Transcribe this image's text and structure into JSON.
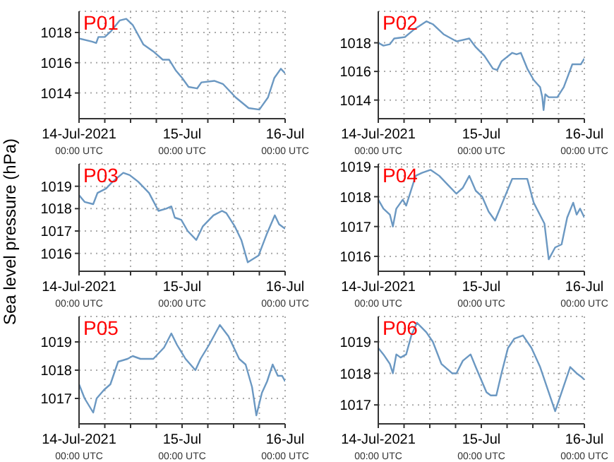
{
  "chart_data": [
    {
      "type": "line",
      "title": "P01",
      "x": [
        "2021-07-14T00:00",
        "2021-07-14T03:00",
        "2021-07-14T04:00",
        "2021-07-14T04:30",
        "2021-07-14T06:00",
        "2021-07-14T07:30",
        "2021-07-14T09:30",
        "2021-07-14T11:00",
        "2021-07-14T12:30",
        "2021-07-14T15:00",
        "2021-07-14T17:30",
        "2021-07-14T19:30",
        "2021-07-14T21:00",
        "2021-07-14T22:30",
        "2021-07-15T00:00",
        "2021-07-15T01:30",
        "2021-07-15T03:30",
        "2021-07-15T04:30",
        "2021-07-15T07:30",
        "2021-07-15T09:30",
        "2021-07-15T12:30",
        "2021-07-15T15:30",
        "2021-07-15T18:00",
        "2021-07-15T20:00",
        "2021-07-15T21:30",
        "2021-07-15T23:00",
        "2021-07-16T00:00"
      ],
      "series": [
        {
          "color": "#6b98c2",
          "values": [
            1017.6,
            1017.4,
            1017.3,
            1017.7,
            1017.7,
            1018.1,
            1018.8,
            1018.9,
            1018.5,
            1017.2,
            1016.7,
            1016.2,
            1016.2,
            1015.5,
            1015.0,
            1014.4,
            1014.3,
            1014.7,
            1014.8,
            1014.6,
            1013.7,
            1013.0,
            1012.9,
            1013.7,
            1015.0,
            1015.6,
            1015.3
          ]
        }
      ],
      "xlim": [
        "2021-07-14T00:00",
        "2021-07-16T00:00"
      ],
      "xticks": [
        {
          "value": "2021-07-14T00:00",
          "label": "14-Jul-2021\n00:00 UTC"
        },
        {
          "value": "2021-07-14T06:00",
          "label": null
        },
        {
          "value": "2021-07-14T12:00",
          "label": null
        },
        {
          "value": "2021-07-14T18:00",
          "label": null
        },
        {
          "value": "2021-07-15T00:00",
          "label": "15-Jul\n00:00 UTC"
        },
        {
          "value": "2021-07-15T06:00",
          "label": null
        },
        {
          "value": "2021-07-15T12:00",
          "label": null
        },
        {
          "value": "2021-07-15T18:00",
          "label": null
        },
        {
          "value": "2021-07-16T00:00",
          "label": "16-Jul\n00:00 UTC"
        }
      ],
      "ylim": [
        1012.3,
        1019.4
      ],
      "yticks": [
        1014,
        1016,
        1018
      ],
      "grid": true
    },
    {
      "type": "line",
      "title": "P02",
      "x": [
        "2021-07-14T00:00",
        "2021-07-14T01:12",
        "2021-07-14T02:42",
        "2021-07-14T03:42",
        "2021-07-14T06:12",
        "2021-07-14T08:12",
        "2021-07-14T11:12",
        "2021-07-14T12:42",
        "2021-07-14T15:12",
        "2021-07-14T18:12",
        "2021-07-14T21:12",
        "2021-07-14T22:42",
        "2021-07-15T00:42",
        "2021-07-15T02:42",
        "2021-07-15T03:42",
        "2021-07-15T04:42",
        "2021-07-15T07:12",
        "2021-07-15T08:12",
        "2021-07-15T09:12",
        "2021-07-15T10:42",
        "2021-07-15T12:12",
        "2021-07-15T13:42",
        "2021-07-15T14:12",
        "2021-07-15T14:30",
        "2021-07-15T14:54",
        "2021-07-15T15:42",
        "2021-07-15T17:42",
        "2021-07-15T19:12",
        "2021-07-15T21:12",
        "2021-07-15T23:12",
        "2021-07-16T00:00"
      ],
      "series": [
        {
          "color": "#6b98c2",
          "values": [
            1018.0,
            1017.8,
            1017.9,
            1018.3,
            1018.4,
            1018.9,
            1019.5,
            1019.3,
            1018.6,
            1018.1,
            1018.3,
            1017.7,
            1017.1,
            1016.2,
            1016.1,
            1016.7,
            1017.3,
            1017.2,
            1017.3,
            1016.2,
            1015.4,
            1014.9,
            1014.2,
            1013.3,
            1014.4,
            1014.2,
            1014.2,
            1014.9,
            1016.5,
            1016.5,
            1016.9
          ]
        }
      ],
      "xlim": [
        "2021-07-14T00:00",
        "2021-07-16T00:00"
      ],
      "xticks": [
        {
          "value": "2021-07-14T00:00",
          "label": "14-Jul-2021\n00:00 UTC"
        },
        {
          "value": "2021-07-14T06:00",
          "label": null
        },
        {
          "value": "2021-07-14T12:00",
          "label": null
        },
        {
          "value": "2021-07-14T18:00",
          "label": null
        },
        {
          "value": "2021-07-15T00:00",
          "label": "15-Jul\n00:00 UTC"
        },
        {
          "value": "2021-07-15T06:00",
          "label": null
        },
        {
          "value": "2021-07-15T12:00",
          "label": null
        },
        {
          "value": "2021-07-15T18:00",
          "label": null
        },
        {
          "value": "2021-07-16T00:00",
          "label": "16-Jul\n00:00 UTC"
        }
      ],
      "ylim": [
        1012.7,
        1020.2
      ],
      "yticks": [
        1014,
        1016,
        1018
      ],
      "grid": true
    },
    {
      "type": "line",
      "title": "P03",
      "ylabel": "Sea level pressure (hPa)",
      "x": [
        "2021-07-14T00:00",
        "2021-07-14T01:18",
        "2021-07-14T03:18",
        "2021-07-14T04:18",
        "2021-07-14T06:18",
        "2021-07-14T07:48",
        "2021-07-14T10:18",
        "2021-07-14T11:48",
        "2021-07-14T13:48",
        "2021-07-14T16:18",
        "2021-07-14T18:30",
        "2021-07-14T20:18",
        "2021-07-14T21:30",
        "2021-07-14T22:18",
        "2021-07-14T23:48",
        "2021-07-15T01:18",
        "2021-07-15T03:18",
        "2021-07-15T04:48",
        "2021-07-15T07:18",
        "2021-07-15T09:18",
        "2021-07-15T10:18",
        "2021-07-15T12:18",
        "2021-07-15T13:48",
        "2021-07-15T15:18",
        "2021-07-15T17:48",
        "2021-07-15T19:48",
        "2021-07-15T21:36",
        "2021-07-15T22:36",
        "2021-07-16T00:00"
      ],
      "series": [
        {
          "color": "#6b98c2",
          "values": [
            1018.6,
            1018.3,
            1018.2,
            1018.7,
            1018.9,
            1019.2,
            1019.6,
            1019.5,
            1019.2,
            1018.7,
            1017.9,
            1018.0,
            1018.1,
            1017.6,
            1017.5,
            1017.0,
            1016.6,
            1017.2,
            1017.7,
            1017.9,
            1017.8,
            1017.2,
            1016.6,
            1015.6,
            1015.9,
            1016.9,
            1017.7,
            1017.3,
            1017.1
          ]
        }
      ],
      "xlim": [
        "2021-07-14T00:00",
        "2021-07-16T00:00"
      ],
      "xticks": [
        {
          "value": "2021-07-14T00:00",
          "label": "14-Jul-2021\n00:00 UTC"
        },
        {
          "value": "2021-07-14T06:00",
          "label": null
        },
        {
          "value": "2021-07-14T12:00",
          "label": null
        },
        {
          "value": "2021-07-14T18:00",
          "label": null
        },
        {
          "value": "2021-07-15T00:00",
          "label": "15-Jul\n00:00 UTC"
        },
        {
          "value": "2021-07-15T06:00",
          "label": null
        },
        {
          "value": "2021-07-15T12:00",
          "label": null
        },
        {
          "value": "2021-07-15T18:00",
          "label": null
        },
        {
          "value": "2021-07-16T00:00",
          "label": "16-Jul\n00:00 UTC"
        }
      ],
      "ylim": [
        1015.2,
        1020
      ],
      "yticks": [
        1016,
        1017,
        1018,
        1019
      ],
      "grid": true
    },
    {
      "type": "line",
      "title": "P04",
      "x": [
        "2021-07-14T00:00",
        "2021-07-14T01:12",
        "2021-07-14T02:42",
        "2021-07-14T03:24",
        "2021-07-14T04:12",
        "2021-07-14T05:42",
        "2021-07-14T06:30",
        "2021-07-14T08:42",
        "2021-07-14T10:12",
        "2021-07-14T12:12",
        "2021-07-14T14:12",
        "2021-07-14T16:12",
        "2021-07-14T18:12",
        "2021-07-14T19:42",
        "2021-07-14T21:12",
        "2021-07-14T22:42",
        "2021-07-15T00:12",
        "2021-07-15T01:42",
        "2021-07-15T03:12",
        "2021-07-15T05:12",
        "2021-07-15T07:12",
        "2021-07-15T10:42",
        "2021-07-15T12:12",
        "2021-07-15T14:42",
        "2021-07-15T15:42",
        "2021-07-15T17:12",
        "2021-07-15T18:42",
        "2021-07-15T20:00",
        "2021-07-15T21:24",
        "2021-07-15T22:12",
        "2021-07-15T23:00",
        "2021-07-16T00:00"
      ],
      "series": [
        {
          "color": "#6b98c2",
          "values": [
            1017.9,
            1017.6,
            1017.4,
            1017.0,
            1017.6,
            1017.9,
            1017.7,
            1018.7,
            1018.8,
            1018.9,
            1018.7,
            1018.4,
            1018.1,
            1018.3,
            1018.7,
            1018.2,
            1018.0,
            1017.5,
            1017.2,
            1017.9,
            1018.6,
            1018.6,
            1017.8,
            1017.1,
            1015.9,
            1016.3,
            1016.4,
            1017.3,
            1017.8,
            1017.4,
            1017.6,
            1017.3
          ]
        }
      ],
      "xlim": [
        "2021-07-14T00:00",
        "2021-07-16T00:00"
      ],
      "xticks": [
        {
          "value": "2021-07-14T00:00",
          "label": "14-Jul-2021\n00:00 UTC"
        },
        {
          "value": "2021-07-14T06:00",
          "label": null
        },
        {
          "value": "2021-07-14T12:00",
          "label": null
        },
        {
          "value": "2021-07-14T18:00",
          "label": null
        },
        {
          "value": "2021-07-15T00:00",
          "label": "15-Jul\n00:00 UTC"
        },
        {
          "value": "2021-07-15T06:00",
          "label": null
        },
        {
          "value": "2021-07-15T12:00",
          "label": null
        },
        {
          "value": "2021-07-15T18:00",
          "label": null
        },
        {
          "value": "2021-07-16T00:00",
          "label": "16-Jul\n00:00 UTC"
        }
      ],
      "ylim": [
        1015.5,
        1019.1
      ],
      "yticks": [
        1016,
        1017,
        1018,
        1019
      ],
      "grid": true
    },
    {
      "type": "line",
      "title": "P05",
      "x": [
        "2021-07-14T00:00",
        "2021-07-14T01:18",
        "2021-07-14T03:18",
        "2021-07-14T04:06",
        "2021-07-14T05:48",
        "2021-07-14T07:18",
        "2021-07-14T09:06",
        "2021-07-14T11:18",
        "2021-07-14T12:30",
        "2021-07-14T14:18",
        "2021-07-14T17:18",
        "2021-07-14T19:48",
        "2021-07-14T21:30",
        "2021-07-14T22:48",
        "2021-07-15T00:48",
        "2021-07-15T03:06",
        "2021-07-15T04:18",
        "2021-07-15T06:18",
        "2021-07-15T08:48",
        "2021-07-15T10:48",
        "2021-07-15T13:18",
        "2021-07-15T14:48",
        "2021-07-15T16:18",
        "2021-07-15T17:18",
        "2021-07-15T18:36",
        "2021-07-15T19:48",
        "2021-07-15T21:06",
        "2021-07-15T22:18",
        "2021-07-15T23:18",
        "2021-07-16T00:00"
      ],
      "series": [
        {
          "color": "#6b98c2",
          "values": [
            1017.5,
            1017.0,
            1016.5,
            1017.0,
            1017.3,
            1017.5,
            1018.3,
            1018.4,
            1018.5,
            1018.4,
            1018.4,
            1018.8,
            1019.3,
            1018.9,
            1018.4,
            1018.0,
            1018.4,
            1018.9,
            1019.6,
            1019.2,
            1018.4,
            1018.2,
            1017.4,
            1016.4,
            1017.2,
            1017.6,
            1018.2,
            1017.8,
            1017.8,
            1017.6
          ]
        }
      ],
      "xlim": [
        "2021-07-14T00:00",
        "2021-07-16T00:00"
      ],
      "xticks": [
        {
          "value": "2021-07-14T00:00",
          "label": "14-Jul-2021\n00:00 UTC"
        },
        {
          "value": "2021-07-14T06:00",
          "label": null
        },
        {
          "value": "2021-07-14T12:00",
          "label": null
        },
        {
          "value": "2021-07-14T18:00",
          "label": null
        },
        {
          "value": "2021-07-15T00:00",
          "label": "15-Jul\n00:00 UTC"
        },
        {
          "value": "2021-07-15T06:00",
          "label": null
        },
        {
          "value": "2021-07-15T12:00",
          "label": null
        },
        {
          "value": "2021-07-15T18:00",
          "label": null
        },
        {
          "value": "2021-07-16T00:00",
          "label": "16-Jul\n00:00 UTC"
        }
      ],
      "ylim": [
        1016.1,
        1019.9
      ],
      "yticks": [
        1017,
        1018,
        1019
      ],
      "grid": true
    },
    {
      "type": "line",
      "title": "P06",
      "x": [
        "2021-07-14T00:00",
        "2021-07-14T01:12",
        "2021-07-14T02:42",
        "2021-07-14T03:24",
        "2021-07-14T04:12",
        "2021-07-14T05:12",
        "2021-07-14T06:30",
        "2021-07-14T07:42",
        "2021-07-14T09:00",
        "2021-07-14T11:12",
        "2021-07-14T12:42",
        "2021-07-14T14:42",
        "2021-07-14T17:12",
        "2021-07-14T18:12",
        "2021-07-14T19:42",
        "2021-07-14T21:30",
        "2021-07-14T22:42",
        "2021-07-15T01:12",
        "2021-07-15T02:12",
        "2021-07-15T03:30",
        "2021-07-15T04:42",
        "2021-07-15T06:12",
        "2021-07-15T07:42",
        "2021-07-15T09:42",
        "2021-07-15T11:42",
        "2021-07-15T13:42",
        "2021-07-15T15:42",
        "2021-07-15T17:12",
        "2021-07-15T18:42",
        "2021-07-15T20:42",
        "2021-07-15T22:12",
        "2021-07-15T23:12",
        "2021-07-16T00:00"
      ],
      "series": [
        {
          "color": "#6b98c2",
          "values": [
            1018.8,
            1018.6,
            1018.3,
            1018.0,
            1018.6,
            1018.5,
            1018.6,
            1019.2,
            1019.6,
            1019.3,
            1019.0,
            1018.3,
            1018.0,
            1018.0,
            1018.4,
            1018.6,
            1018.2,
            1017.4,
            1017.3,
            1017.3,
            1018.0,
            1018.8,
            1019.1,
            1019.2,
            1018.8,
            1018.2,
            1017.4,
            1016.8,
            1017.4,
            1018.2,
            1018.0,
            1017.9,
            1017.8
          ]
        }
      ],
      "xlim": [
        "2021-07-14T00:00",
        "2021-07-16T00:00"
      ],
      "xticks": [
        {
          "value": "2021-07-14T00:00",
          "label": "14-Jul-2021\n00:00 UTC"
        },
        {
          "value": "2021-07-14T06:00",
          "label": null
        },
        {
          "value": "2021-07-14T12:00",
          "label": null
        },
        {
          "value": "2021-07-14T18:00",
          "label": null
        },
        {
          "value": "2021-07-15T00:00",
          "label": "15-Jul\n00:00 UTC"
        },
        {
          "value": "2021-07-15T06:00",
          "label": null
        },
        {
          "value": "2021-07-15T12:00",
          "label": null
        },
        {
          "value": "2021-07-15T18:00",
          "label": null
        },
        {
          "value": "2021-07-16T00:00",
          "label": "16-Jul\n00:00 UTC"
        }
      ],
      "ylim": [
        1016.4,
        1019.8
      ],
      "yticks": [
        1017,
        1018,
        1019
      ],
      "grid": true
    }
  ]
}
